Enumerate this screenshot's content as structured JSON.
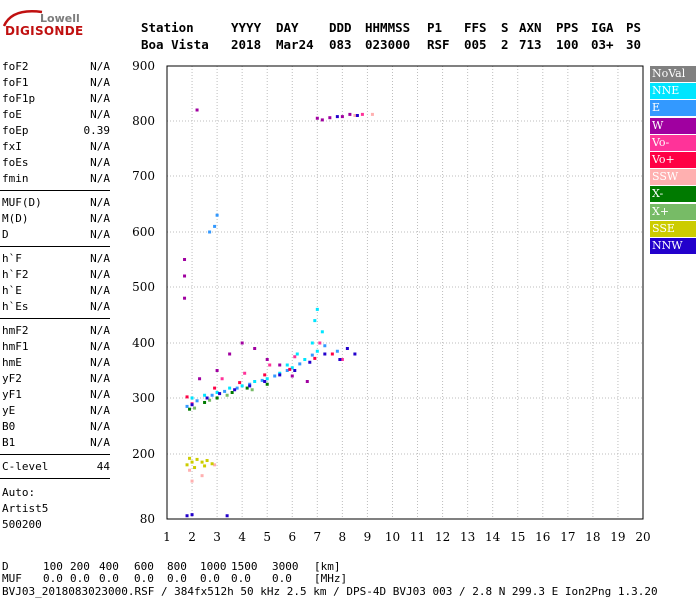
{
  "logo": {
    "line1": "Lowell",
    "line2": "DIGISONDE"
  },
  "header": {
    "labels": [
      "Station",
      "YYYY",
      "DAY",
      "DDD",
      "HHMMSS",
      "P1",
      "FFS",
      "S",
      "AXN",
      "PPS",
      "IGA",
      "PS"
    ],
    "values": [
      "Boa Vista",
      "2018",
      "Mar24",
      "083",
      "023000",
      "RSF",
      "005",
      "2",
      "713",
      "100",
      "03+",
      "30"
    ]
  },
  "params_group1": [
    {
      "name": "foF2",
      "value": "N/A"
    },
    {
      "name": "foF1",
      "value": "N/A"
    },
    {
      "name": "foF1p",
      "value": "N/A"
    },
    {
      "name": "foE",
      "value": "N/A"
    },
    {
      "name": "foEp",
      "value": "0.39"
    },
    {
      "name": "fxI",
      "value": "N/A"
    },
    {
      "name": "foEs",
      "value": "N/A"
    },
    {
      "name": "fmin",
      "value": "N/A"
    }
  ],
  "params_group2": [
    {
      "name": "MUF(D)",
      "value": "N/A"
    },
    {
      "name": "M(D)",
      "value": "N/A"
    },
    {
      "name": "D",
      "value": "N/A"
    }
  ],
  "params_group3": [
    {
      "name": "h`F",
      "value": "N/A"
    },
    {
      "name": "h`F2",
      "value": "N/A"
    },
    {
      "name": "h`E",
      "value": "N/A"
    },
    {
      "name": "h`Es",
      "value": "N/A"
    }
  ],
  "params_group4": [
    {
      "name": "hmF2",
      "value": "N/A"
    },
    {
      "name": "hmF1",
      "value": "N/A"
    },
    {
      "name": "hmE",
      "value": "N/A"
    },
    {
      "name": "yF2",
      "value": "N/A"
    },
    {
      "name": "yF1",
      "value": "N/A"
    },
    {
      "name": "yE",
      "value": "N/A"
    },
    {
      "name": "B0",
      "value": "N/A"
    },
    {
      "name": "B1",
      "value": "N/A"
    }
  ],
  "clevel": {
    "name": "C-level",
    "value": "44"
  },
  "auto": [
    "Auto:",
    "Artist5",
    "500200"
  ],
  "muf_table": {
    "d_label": "D",
    "d_values": [
      "100",
      "200",
      "400",
      "600",
      "800",
      "1000",
      "1500",
      "3000"
    ],
    "d_unit": "[km]",
    "muf_label": "MUF",
    "muf_values": [
      "0.0",
      "0.0",
      "0.0",
      "0.0",
      "0.0",
      "0.0",
      "0.0",
      "0.0"
    ],
    "muf_unit": "[MHz]"
  },
  "footer": "BVJ03_2018083023000.RSF / 384fx512h 50 kHz 2.5 km / DPS-4D BVJ03 003 / 2.8 N 299.3 E Ion2Png 1.3.20",
  "legend": [
    {
      "label": "NoVal",
      "color": "#808080"
    },
    {
      "label": "NNE",
      "color": "#00e5ff"
    },
    {
      "label": "E",
      "color": "#3399ff"
    },
    {
      "label": "W",
      "color": "#a000a0"
    },
    {
      "label": "Vo-",
      "color": "#ff3399"
    },
    {
      "label": "Vo+",
      "color": "#ff0044"
    },
    {
      "label": "SSW",
      "color": "#ffb0b0"
    },
    {
      "label": "X-",
      "color": "#007a00"
    },
    {
      "label": "X+",
      "color": "#77bb66"
    },
    {
      "label": "SSE",
      "color": "#cccc00"
    },
    {
      "label": "NNW",
      "color": "#2200cc"
    }
  ],
  "chart_data": {
    "type": "scatter",
    "xlabel": "",
    "ylabel": "",
    "xlim": [
      1,
      20
    ],
    "ylim": [
      80,
      900
    ],
    "x_ticks": [
      1,
      2,
      3,
      4,
      5,
      6,
      7,
      8,
      9,
      10,
      11,
      12,
      13,
      14,
      15,
      16,
      17,
      18,
      19,
      20
    ],
    "y_ticks": [
      80,
      200,
      300,
      400,
      500,
      600,
      700,
      800,
      900
    ],
    "y_scale": "reciprocal",
    "grid": true,
    "series": [
      {
        "color_key": "NNE",
        "points": [
          [
            2.0,
            300
          ],
          [
            2.5,
            305
          ],
          [
            3.0,
            310
          ],
          [
            3.5,
            318
          ],
          [
            4.0,
            322
          ],
          [
            4.5,
            330
          ],
          [
            5.0,
            335
          ],
          [
            5.5,
            345
          ],
          [
            6.0,
            355
          ],
          [
            6.5,
            370
          ],
          [
            7.0,
            385
          ],
          [
            7.2,
            420
          ],
          [
            6.8,
            400
          ],
          [
            6.2,
            380
          ],
          [
            5.8,
            360
          ],
          [
            7.0,
            460
          ],
          [
            6.9,
            440
          ]
        ]
      },
      {
        "color_key": "E",
        "points": [
          [
            1.8,
            285
          ],
          [
            2.2,
            295
          ],
          [
            2.8,
            305
          ],
          [
            3.3,
            312
          ],
          [
            3.8,
            318
          ],
          [
            4.3,
            325
          ],
          [
            4.8,
            332
          ],
          [
            5.3,
            340
          ],
          [
            5.8,
            350
          ],
          [
            6.3,
            362
          ],
          [
            6.8,
            378
          ],
          [
            7.3,
            395
          ],
          [
            7.8,
            385
          ],
          [
            2.7,
            600
          ],
          [
            3.0,
            630
          ],
          [
            2.9,
            610
          ]
        ]
      },
      {
        "color_key": "W",
        "points": [
          [
            1.7,
            520
          ],
          [
            1.7,
            550
          ],
          [
            1.7,
            480
          ],
          [
            2.3,
            335
          ],
          [
            3.0,
            350
          ],
          [
            3.5,
            380
          ],
          [
            4.0,
            400
          ],
          [
            4.5,
            390
          ],
          [
            5.0,
            370
          ],
          [
            5.5,
            360
          ],
          [
            6.0,
            340
          ],
          [
            6.6,
            330
          ],
          [
            7.2,
            802
          ],
          [
            7.5,
            806
          ],
          [
            8.0,
            808
          ],
          [
            8.3,
            812
          ],
          [
            7.0,
            805
          ],
          [
            2.2,
            820
          ]
        ]
      },
      {
        "color_key": "Vo-",
        "points": [
          [
            2.0,
            290
          ],
          [
            3.2,
            335
          ],
          [
            4.1,
            345
          ],
          [
            5.1,
            360
          ],
          [
            6.1,
            375
          ],
          [
            7.1,
            400
          ],
          [
            8.0,
            370
          ],
          [
            8.8,
            812
          ]
        ]
      },
      {
        "color_key": "Vo+",
        "points": [
          [
            1.8,
            302
          ],
          [
            2.9,
            318
          ],
          [
            3.9,
            328
          ],
          [
            4.9,
            342
          ],
          [
            5.9,
            352
          ],
          [
            6.9,
            372
          ],
          [
            7.6,
            380
          ]
        ]
      },
      {
        "color_key": "SSW",
        "points": [
          [
            2.0,
            150
          ],
          [
            2.4,
            160
          ],
          [
            2.9,
            180
          ],
          [
            8.5,
            810
          ],
          [
            9.2,
            812
          ],
          [
            1.9,
            170
          ]
        ]
      },
      {
        "color_key": "X-",
        "points": [
          [
            1.9,
            280
          ],
          [
            2.5,
            292
          ],
          [
            3.0,
            300
          ],
          [
            3.6,
            310
          ],
          [
            4.2,
            318
          ],
          [
            5.0,
            325
          ]
        ]
      },
      {
        "color_key": "X+",
        "points": [
          [
            2.1,
            282
          ],
          [
            2.7,
            296
          ],
          [
            3.4,
            305
          ],
          [
            4.4,
            315
          ]
        ]
      },
      {
        "color_key": "SSE",
        "points": [
          [
            1.8,
            180
          ],
          [
            2.0,
            185
          ],
          [
            2.2,
            190
          ],
          [
            2.4,
            185
          ],
          [
            2.6,
            188
          ],
          [
            2.8,
            182
          ],
          [
            2.1,
            175
          ],
          [
            2.5,
            178
          ],
          [
            1.9,
            192
          ]
        ]
      },
      {
        "color_key": "NNW",
        "points": [
          [
            2.0,
            288
          ],
          [
            2.6,
            300
          ],
          [
            3.1,
            308
          ],
          [
            3.7,
            315
          ],
          [
            4.3,
            322
          ],
          [
            4.9,
            330
          ],
          [
            5.5,
            342
          ],
          [
            6.1,
            350
          ],
          [
            6.7,
            365
          ],
          [
            7.3,
            380
          ],
          [
            7.9,
            370
          ],
          [
            8.2,
            390
          ],
          [
            8.5,
            380
          ],
          [
            7.8,
            808
          ],
          [
            8.6,
            810
          ],
          [
            3.4,
            86
          ],
          [
            2.0,
            88
          ],
          [
            1.8,
            86
          ]
        ]
      }
    ]
  }
}
